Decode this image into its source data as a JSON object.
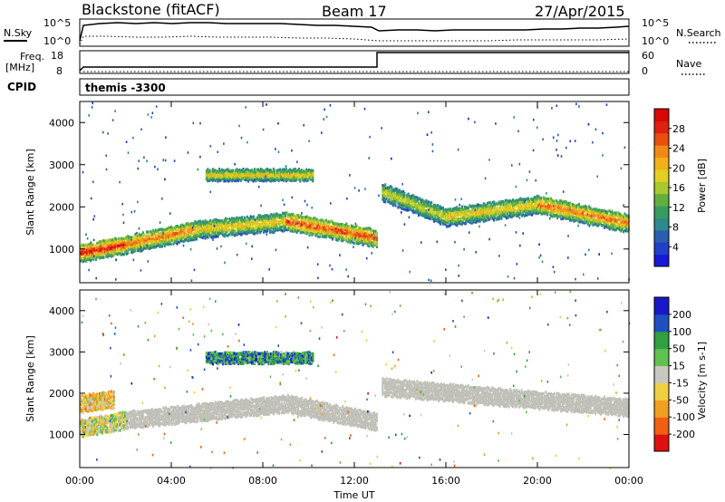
{
  "header": {
    "title": "Blackstone (fitACF)",
    "beam": "Beam 17",
    "date": "27/Apr/2015",
    "cpid_label": "CPID",
    "cpid_value": "themis -3300"
  },
  "top_panels": {
    "nsky_label": "N.Sky",
    "nsearch_label": "N.Search",
    "freq_label_line1": "Freq.",
    "freq_label_line2": "[MHz]",
    "nave_label": "Nave",
    "noise_left_ticks": [
      "10^5",
      "10^0"
    ],
    "noise_right_ticks": [
      "10^5",
      "10^0"
    ],
    "freq_left_ticks": [
      "18",
      "8"
    ],
    "freq_right_ticks": [
      "60",
      "0"
    ]
  },
  "x_axis": {
    "label": "Time UT",
    "ticks": [
      "00:00",
      "04:00",
      "08:00",
      "12:00",
      "16:00",
      "20:00",
      "00:00"
    ]
  },
  "chart_data": [
    {
      "type": "heatmap",
      "name": "power",
      "ylabel": "Slant Range [km]",
      "yticks": [
        "1000",
        "2000",
        "3000",
        "4000"
      ],
      "ylim": [
        200,
        4500
      ],
      "xlim_hours": [
        0,
        24
      ],
      "colorbar": {
        "label": "Power [dB]",
        "ticks": [
          "4",
          "8",
          "12",
          "16",
          "20",
          "24",
          "28"
        ],
        "range": [
          0,
          30
        ],
        "colors": [
          "#1818d8",
          "#2040c8",
          "#2a5fb0",
          "#2e8a8a",
          "#3a9a60",
          "#60b040",
          "#a8c830",
          "#e0d020",
          "#f0b018",
          "#f08818",
          "#e85010",
          "#e02010",
          "#d80808"
        ]
      },
      "bands": [
        {
          "t0": 0.0,
          "t1": 2.0,
          "range_start": 950,
          "range_end": 1150,
          "power": 26
        },
        {
          "t0": 2.0,
          "t1": 5.0,
          "range_start": 1150,
          "range_end": 1500,
          "power": 22
        },
        {
          "t0": 5.0,
          "t1": 9.0,
          "range_start": 1500,
          "range_end": 1700,
          "power": 18
        },
        {
          "t0": 9.0,
          "t1": 13.0,
          "range_start": 1700,
          "range_end": 1300,
          "power": 24
        },
        {
          "t0": 13.2,
          "t1": 16.0,
          "range_start": 2400,
          "range_end": 1800,
          "power": 16
        },
        {
          "t0": 16.0,
          "t1": 20.0,
          "range_start": 1800,
          "range_end": 2100,
          "power": 18
        },
        {
          "t0": 20.0,
          "t1": 24.0,
          "range_start": 2100,
          "range_end": 1650,
          "power": 22
        },
        {
          "t0": 5.5,
          "t1": 10.2,
          "range_start": 2800,
          "range_end": 2800,
          "power": 18
        }
      ]
    },
    {
      "type": "heatmap",
      "name": "velocity",
      "ylabel": "Slant Range [km]",
      "yticks": [
        "1000",
        "2000",
        "3000",
        "4000"
      ],
      "ylim": [
        200,
        4500
      ],
      "xlim_hours": [
        0,
        24
      ],
      "colorbar": {
        "label": "Velocity [m s-1]",
        "ticks": [
          "200",
          "100",
          "50",
          "15",
          "-15",
          "-50",
          "-100",
          "-200"
        ],
        "range": [
          -250,
          250
        ],
        "colors": [
          "#1818c8",
          "#2050c0",
          "#30a040",
          "#60c050",
          "#c8c8c0",
          "#f0d040",
          "#f0a020",
          "#f06010",
          "#e01010"
        ]
      },
      "bands": [
        {
          "t0": 0.0,
          "t1": 2.0,
          "range_start": 1200,
          "range_end": 1400,
          "velocity": -10
        },
        {
          "t0": 0.0,
          "t1": 1.5,
          "range_start": 1800,
          "range_end": 1900,
          "velocity": -60
        },
        {
          "t0": 2.0,
          "t1": 9.0,
          "range_start": 1400,
          "range_end": 1800,
          "velocity": 0
        },
        {
          "t0": 9.0,
          "t1": 13.0,
          "range_start": 1800,
          "range_end": 1350,
          "velocity": 0
        },
        {
          "t0": 13.2,
          "t1": 24.0,
          "range_start": 2200,
          "range_end": 1700,
          "velocity": 0
        },
        {
          "t0": 5.5,
          "t1": 10.2,
          "range_start": 2900,
          "range_end": 2900,
          "velocity": 120
        }
      ]
    }
  ],
  "colors": {
    "axis": "#000000",
    "background": "#ffffff",
    "ground_scatter": "#c0c0b8"
  }
}
